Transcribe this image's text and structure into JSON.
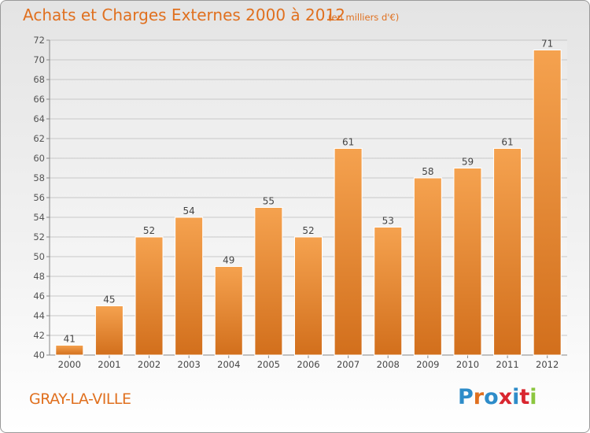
{
  "header": {
    "title": "Achats et Charges Externes 2000 à 2012",
    "unit": "(en milliers d'€)"
  },
  "footer": {
    "place": "GRAY-LA-VILLE",
    "logo": [
      "P",
      "r",
      "o",
      "x",
      "i",
      "t",
      "i"
    ]
  },
  "colors": {
    "title": "#e0701f",
    "bar_top": "#f5a24f",
    "bar_bottom": "#d26f1c",
    "logo": [
      "#2e8cc9",
      "#e0701f",
      "#2e8cc9",
      "#d9262f",
      "#2e8cc9",
      "#d9262f",
      "#8cc63f"
    ]
  },
  "chart_data": {
    "type": "bar",
    "title": "Achats et Charges Externes 2000 à 2012",
    "subtitle": "(en milliers d'€)",
    "categories": [
      "2000",
      "2001",
      "2002",
      "2003",
      "2004",
      "2005",
      "2006",
      "2007",
      "2008",
      "2009",
      "2010",
      "2011",
      "2012"
    ],
    "values": [
      41,
      45,
      52,
      54,
      49,
      55,
      52,
      61,
      53,
      58,
      59,
      61,
      71
    ],
    "ylim": [
      40,
      72
    ],
    "yticks": [
      40,
      42,
      44,
      46,
      48,
      50,
      52,
      54,
      56,
      58,
      60,
      62,
      64,
      66,
      68,
      70,
      72
    ],
    "grid": true,
    "data_labels": true
  }
}
